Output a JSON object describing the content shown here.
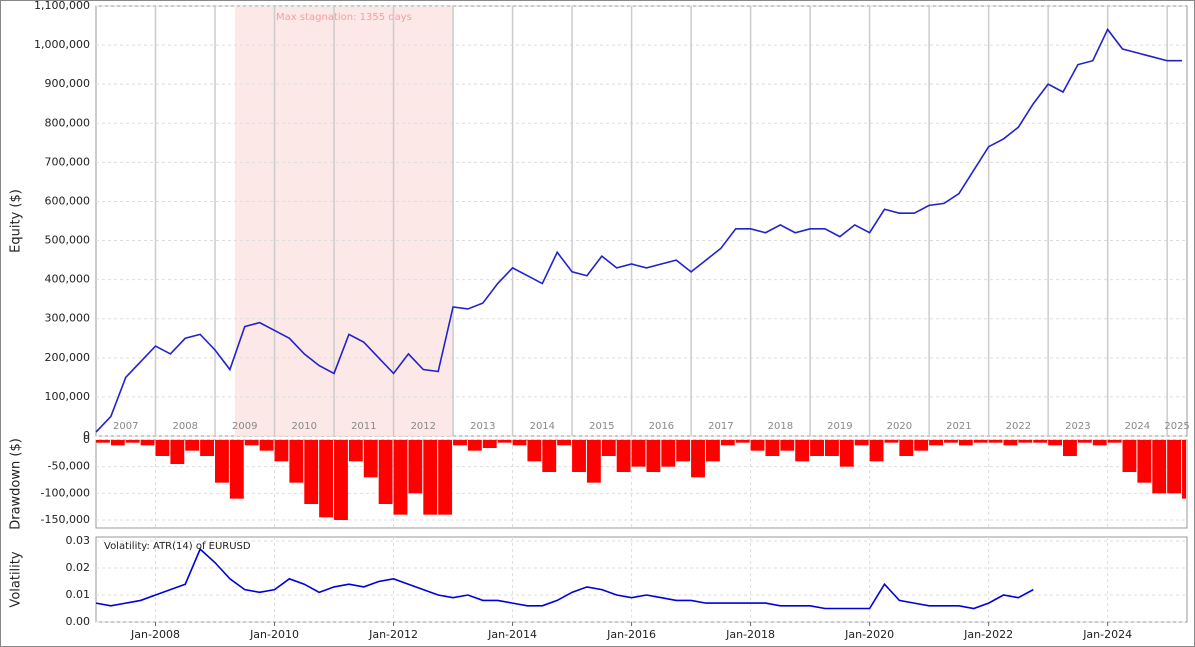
{
  "chart_data": [
    {
      "type": "line",
      "y_label": "Equity ($)",
      "color": "#2222cc",
      "grid": true,
      "xlim": [
        "2007-01",
        "2025-05"
      ],
      "ylim": [
        0,
        1100000
      ],
      "yticks": [
        0,
        {
          "value": 100000,
          "label": "100,000"
        },
        {
          "value": 200000,
          "label": "200,000"
        },
        {
          "value": 300000,
          "label": "300,000"
        },
        {
          "value": 400000,
          "label": "400,000"
        },
        {
          "value": 500000,
          "label": "500,000"
        },
        {
          "value": 600000,
          "label": "600,000"
        },
        {
          "value": 700000,
          "label": "700,000"
        },
        {
          "value": 800000,
          "label": "800,000"
        },
        {
          "value": 900000,
          "label": "900,000"
        },
        {
          "value": 1000000,
          "label": "1,000,000"
        },
        {
          "value": 1100000,
          "label": "1,100,000"
        }
      ],
      "year_labels": [
        2007,
        2008,
        2009,
        2010,
        2011,
        2012,
        2013,
        2014,
        2015,
        2016,
        2017,
        2018,
        2019,
        2020,
        2021,
        2022,
        2023,
        2024,
        2025
      ],
      "stagnation": {
        "label": "Max stagnation: 1355 days",
        "start": "2009-05",
        "end": "2013-01",
        "color": "#fde8e8"
      },
      "x": [
        "2007-01",
        "2007-04",
        "2007-07",
        "2007-10",
        "2008-01",
        "2008-04",
        "2008-07",
        "2008-10",
        "2009-01",
        "2009-04",
        "2009-07",
        "2009-10",
        "2010-01",
        "2010-04",
        "2010-07",
        "2010-10",
        "2011-01",
        "2011-04",
        "2011-07",
        "2011-10",
        "2012-01",
        "2012-04",
        "2012-07",
        "2012-10",
        "2013-01",
        "2013-04",
        "2013-07",
        "2013-10",
        "2014-01",
        "2014-04",
        "2014-07",
        "2014-10",
        "2015-01",
        "2015-04",
        "2015-07",
        "2015-10",
        "2016-01",
        "2016-04",
        "2016-07",
        "2016-10",
        "2017-01",
        "2017-04",
        "2017-07",
        "2017-10",
        "2018-01",
        "2018-04",
        "2018-07",
        "2018-10",
        "2019-01",
        "2019-04",
        "2019-07",
        "2019-10",
        "2020-01",
        "2020-04",
        "2020-07",
        "2020-10",
        "2021-01",
        "2021-04",
        "2021-07",
        "2021-10",
        "2022-01",
        "2022-04",
        "2022-07",
        "2022-10",
        "2023-01",
        "2023-04",
        "2023-07",
        "2023-10",
        "2024-01",
        "2024-04",
        "2024-07",
        "2024-10",
        "2025-01",
        "2025-04"
      ],
      "values": [
        10000,
        50000,
        150000,
        190000,
        230000,
        210000,
        250000,
        260000,
        220000,
        170000,
        280000,
        290000,
        270000,
        250000,
        210000,
        180000,
        160000,
        260000,
        240000,
        200000,
        160000,
        210000,
        170000,
        165000,
        330000,
        325000,
        340000,
        390000,
        430000,
        410000,
        390000,
        470000,
        420000,
        410000,
        460000,
        430000,
        440000,
        430000,
        440000,
        450000,
        420000,
        450000,
        480000,
        530000,
        530000,
        520000,
        540000,
        520000,
        530000,
        530000,
        510000,
        540000,
        520000,
        580000,
        570000,
        570000,
        590000,
        595000,
        620000,
        680000,
        740000,
        760000,
        790000,
        850000,
        900000,
        880000,
        950000,
        960000,
        1040000,
        990000,
        980000,
        970000,
        960000,
        960000
      ]
    },
    {
      "type": "bar",
      "y_label": "Drawdown ($)",
      "color": "#ff0000",
      "grid": true,
      "xlim": [
        "2007-01",
        "2025-05"
      ],
      "ylim": [
        -165000,
        0
      ],
      "yticks": [
        0,
        {
          "value": -50000,
          "label": "-50,000"
        },
        {
          "value": -100000,
          "label": "-100,000"
        },
        {
          "value": -150000,
          "label": "-150,000"
        }
      ],
      "x": [
        "2007-01",
        "2007-04",
        "2007-07",
        "2007-10",
        "2008-01",
        "2008-04",
        "2008-07",
        "2008-10",
        "2009-01",
        "2009-04",
        "2009-07",
        "2009-10",
        "2010-01",
        "2010-04",
        "2010-07",
        "2010-10",
        "2011-01",
        "2011-04",
        "2011-07",
        "2011-10",
        "2012-01",
        "2012-04",
        "2012-07",
        "2012-10",
        "2013-01",
        "2013-04",
        "2013-07",
        "2013-10",
        "2014-01",
        "2014-04",
        "2014-07",
        "2014-10",
        "2015-01",
        "2015-04",
        "2015-07",
        "2015-10",
        "2016-01",
        "2016-04",
        "2016-07",
        "2016-10",
        "2017-01",
        "2017-04",
        "2017-07",
        "2017-10",
        "2018-01",
        "2018-04",
        "2018-07",
        "2018-10",
        "2019-01",
        "2019-04",
        "2019-07",
        "2019-10",
        "2020-01",
        "2020-04",
        "2020-07",
        "2020-10",
        "2021-01",
        "2021-04",
        "2021-07",
        "2021-10",
        "2022-01",
        "2022-04",
        "2022-07",
        "2022-10",
        "2023-01",
        "2023-04",
        "2023-07",
        "2023-10",
        "2024-01",
        "2024-04",
        "2024-07",
        "2024-10",
        "2025-01",
        "2025-04"
      ],
      "values": [
        -5000,
        -10000,
        -5000,
        -10000,
        -30000,
        -45000,
        -20000,
        -30000,
        -80000,
        -110000,
        -10000,
        -20000,
        -40000,
        -80000,
        -120000,
        -145000,
        -150000,
        -40000,
        -70000,
        -120000,
        -140000,
        -100000,
        -140000,
        -140000,
        -10000,
        -20000,
        -15000,
        -5000,
        -10000,
        -40000,
        -60000,
        -10000,
        -60000,
        -80000,
        -30000,
        -60000,
        -50000,
        -60000,
        -50000,
        -40000,
        -70000,
        -40000,
        -10000,
        -5000,
        -20000,
        -30000,
        -20000,
        -40000,
        -30000,
        -30000,
        -50000,
        -10000,
        -40000,
        -5000,
        -30000,
        -20000,
        -10000,
        -5000,
        -10000,
        -5000,
        -5000,
        -10000,
        -5000,
        -5000,
        -10000,
        -30000,
        -5000,
        -10000,
        -5000,
        -60000,
        -80000,
        -100000,
        -100000,
        -110000
      ]
    },
    {
      "type": "line",
      "y_label": "Volatility",
      "grid": true,
      "xlim": [
        "2007-01",
        "2025-05"
      ],
      "ylim": [
        0,
        0.0315
      ],
      "yticks": [
        {
          "value": 0,
          "label": "0.00"
        },
        0.01,
        0.02,
        0.03
      ],
      "xticks": [
        {
          "value": "2008-01",
          "label": "Jan-2008"
        },
        {
          "value": "2010-01",
          "label": "Jan-2010"
        },
        {
          "value": "2012-01",
          "label": "Jan-2012"
        },
        {
          "value": "2014-01",
          "label": "Jan-2014"
        },
        {
          "value": "2016-01",
          "label": "Jan-2016"
        },
        {
          "value": "2018-01",
          "label": "Jan-2018"
        },
        {
          "value": "2020-01",
          "label": "Jan-2020"
        },
        {
          "value": "2022-01",
          "label": "Jan-2022"
        },
        {
          "value": "2024-01",
          "label": "Jan-2024"
        }
      ],
      "x": [
        "2007-01",
        "2007-04",
        "2007-07",
        "2007-10",
        "2008-01",
        "2008-04",
        "2008-07",
        "2008-10",
        "2009-01",
        "2009-04",
        "2009-07",
        "2009-10",
        "2010-01",
        "2010-04",
        "2010-07",
        "2010-10",
        "2011-01",
        "2011-04",
        "2011-07",
        "2011-10",
        "2012-01",
        "2012-04",
        "2012-07",
        "2012-10",
        "2013-01",
        "2013-04",
        "2013-07",
        "2013-10",
        "2014-01",
        "2014-04",
        "2014-07",
        "2014-10",
        "2015-01",
        "2015-04",
        "2015-07",
        "2015-10",
        "2016-01",
        "2016-04",
        "2016-07",
        "2016-10",
        "2017-01",
        "2017-04",
        "2017-07",
        "2017-10",
        "2018-01",
        "2018-04",
        "2018-07",
        "2018-10",
        "2019-01",
        "2019-04",
        "2019-07",
        "2019-10",
        "2020-01",
        "2020-04",
        "2020-07",
        "2020-10",
        "2021-01",
        "2021-04",
        "2021-07",
        "2021-10",
        "2022-01",
        "2022-04",
        "2022-07",
        "2022-10"
      ],
      "series": [
        {
          "name": "Volatility: ATR(14) of EURUSD",
          "color": "#0000dd",
          "values": [
            0.007,
            0.006,
            0.007,
            0.008,
            0.01,
            0.012,
            0.014,
            0.027,
            0.022,
            0.016,
            0.012,
            0.011,
            0.012,
            0.016,
            0.014,
            0.011,
            0.013,
            0.014,
            0.013,
            0.015,
            0.016,
            0.014,
            0.012,
            0.01,
            0.009,
            0.01,
            0.008,
            0.008,
            0.007,
            0.006,
            0.006,
            0.008,
            0.011,
            0.013,
            0.012,
            0.01,
            0.009,
            0.01,
            0.009,
            0.008,
            0.008,
            0.007,
            0.007,
            0.007,
            0.007,
            0.007,
            0.006,
            0.006,
            0.006,
            0.005,
            0.005,
            0.005,
            0.005,
            0.014,
            0.008,
            0.007,
            0.006,
            0.006,
            0.006,
            0.005,
            0.007,
            0.01,
            0.009,
            0.012
          ]
        }
      ]
    }
  ]
}
